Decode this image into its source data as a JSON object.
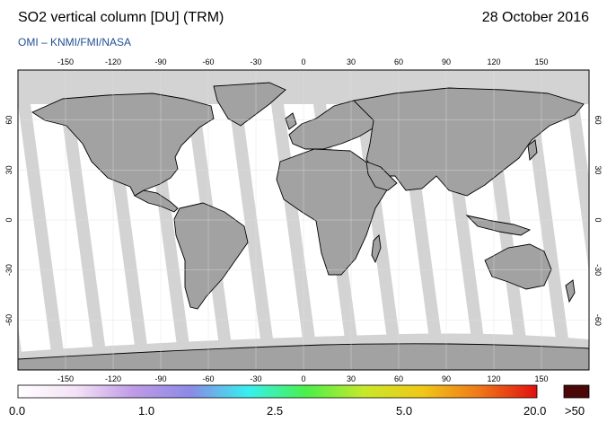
{
  "header": {
    "title": "SO2 vertical column [DU] (TRM)",
    "date": "28 October 2016",
    "credit": "OMI  –  KNMI/FMI/NASA"
  },
  "map": {
    "lon_ticks": [
      "-150",
      "-120",
      "-90",
      "-60",
      "-30",
      "0",
      "30",
      "60",
      "90",
      "120",
      "150"
    ],
    "lat_ticks": [
      "60",
      "30",
      "0",
      "-30",
      "-60"
    ],
    "colors": {
      "ocean": "#ffffff",
      "land_day": "#a2a2a2",
      "no_data": "#d3d3d3",
      "coast": "#000000"
    }
  },
  "colorbar": {
    "labels": [
      "0.0",
      "1.0",
      "2.5",
      "5.0",
      "20.0",
      ">50"
    ],
    "stops": [
      "#ffffff",
      "#f4e2f6",
      "#c09ae6",
      "#8a8ae6",
      "#36f0f0",
      "#4af04a",
      "#c8e82a",
      "#f0c818",
      "#f07818",
      "#e01010"
    ],
    "overflow_color": "#4a0808"
  }
}
